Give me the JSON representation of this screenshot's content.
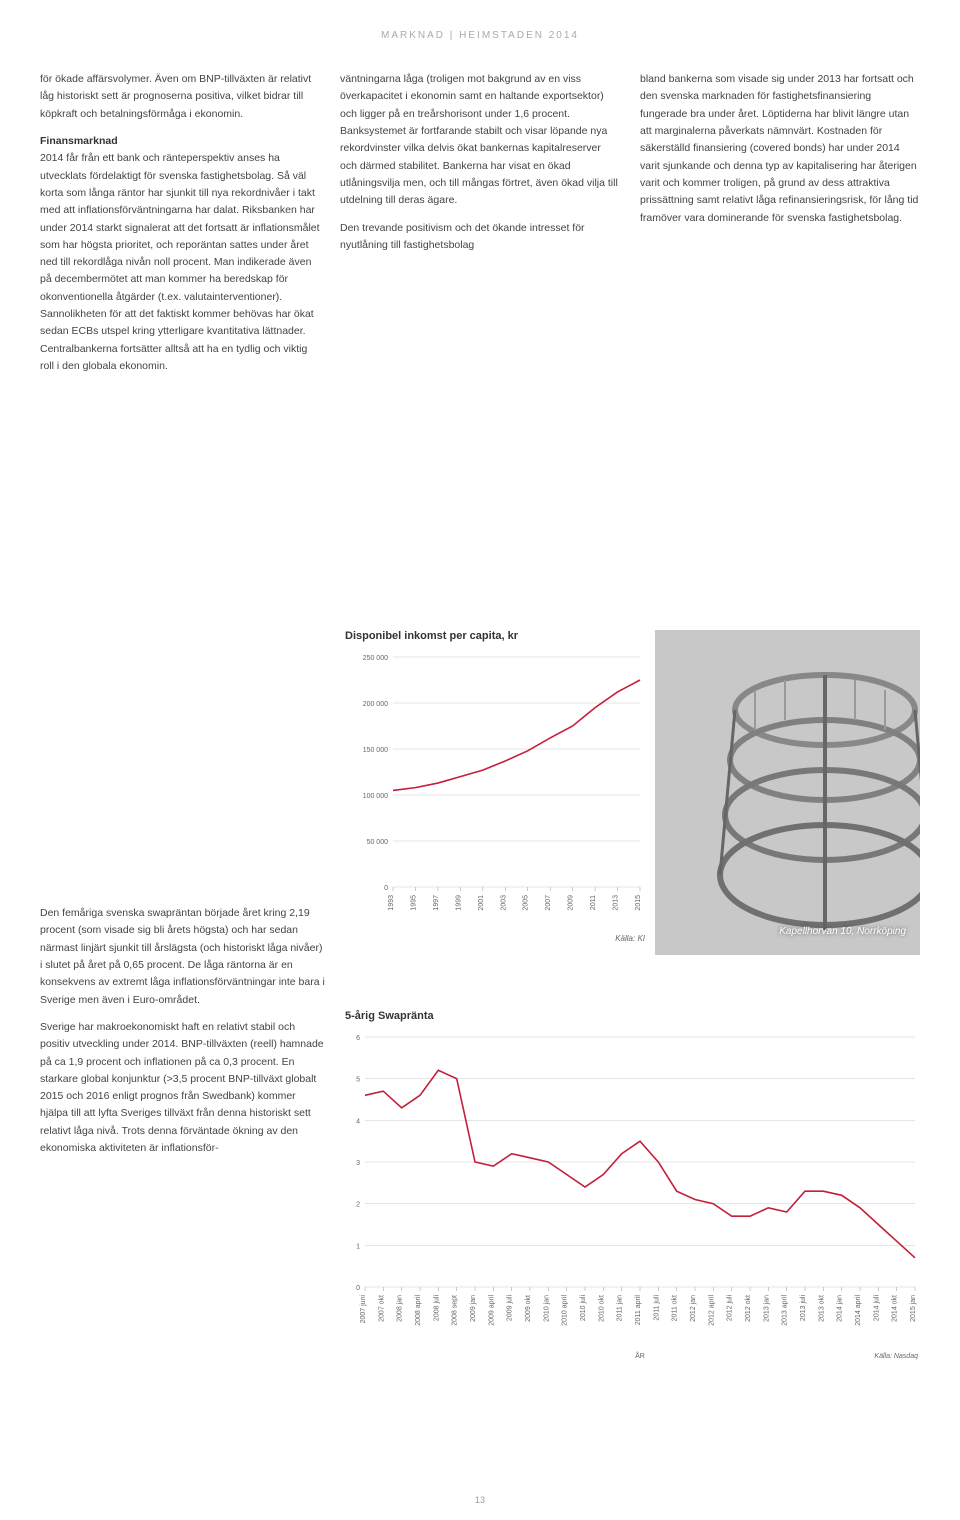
{
  "header": "MARKNAD | HEIMSTADEN 2014",
  "col1": {
    "p1": "för ökade affärsvolymer. Även om BNP-tillväxten är relativt låg historiskt sett är prognoserna positiva, vilket bidrar till köpkraft och betalningsförmåga i ekonomin.",
    "h1": "Finansmarknad",
    "p2": "2014 får från ett bank och ränteperspektiv anses ha utvecklats fördelaktigt för svenska fastighetsbolag. Så väl korta som långa räntor har sjunkit till nya rekordnivåer i takt med att inflationsförväntningarna har dalat. Riksbanken har under 2014 starkt signalerat att det fortsatt är inflationsmålet som har högsta prioritet, och reporäntan sattes under året ned till rekordlåga nivån noll procent. Man indikerade även på decembermötet att man kommer ha beredskap för okonventionella åtgärder (t.ex. valutainterventioner). Sannolikheten för att det faktiskt kommer behövas har ökat sedan ECBs utspel kring ytterligare kvantitativa lättnader. Centralbankerna fortsätter alltså att ha en tydlig och viktig roll i den globala ekonomin."
  },
  "col1_lower": {
    "p3": "Den femåriga svenska swapräntan började året kring 2,19 procent (som visade sig bli årets högsta) och har sedan närmast linjärt sjunkit till årslägsta (och historiskt låga nivåer) i slutet på året på 0,65 procent. De låga räntorna är en konsekvens av extremt låga inflationsförväntningar inte bara i Sverige men även i Euro-området.",
    "p4": "Sverige har makroekonomiskt haft en relativt stabil och positiv utveckling under 2014. BNP-tillväxten (reell) hamnade på ca 1,9 procent och inflationen på ca 0,3 procent. En starkare global konjunktur (>3,5 procent BNP-tillväxt globalt 2015 och 2016 enligt prognos från Swedbank) kommer hjälpa till att lyfta Sveriges tillväxt från denna historiskt sett relativt låga nivå. Trots denna förväntade ökning av den ekonomiska aktiviteten är inflationsför-"
  },
  "col2": {
    "p1": "väntningarna låga (troligen mot bakgrund av en viss överkapacitet i ekonomin samt en haltande exportsektor) och ligger på en treårshorisont under 1,6 procent. Banksystemet är fortfarande stabilt och visar löpande nya rekordvinster vilka delvis ökat bankernas kapitalreserver och därmed stabilitet. Bankerna har visat en ökad utlåningsvilja men, och till mångas förtret, även ökad vilja till utdelning till deras ägare.",
    "p2": "Den trevande positivism och det ökande intresset för nyutlåning till fastighetsbolag"
  },
  "col3": {
    "p1": "bland bankerna som visade sig under 2013 har fortsatt och den svenska marknaden för fastighetsfinansiering fungerade bra under året. Löptiderna har blivit längre utan att marginalerna påverkats nämnvärt. Kostnaden för säkerställd finansiering (covered bonds) har under 2014 varit sjunkande och denna typ av kapitalisering har återigen varit och kommer troligen, på grund av dess attraktiva prissättning samt relativt låga refinansieringsrisk, för lång tid framöver vara dominerande för svenska fastighetsbolag."
  },
  "chart1": {
    "title": "Disponibel inkomst per capita, kr",
    "ylabels": [
      "250 000",
      "200 000",
      "150 000",
      "100 000",
      "50 000",
      "0"
    ],
    "yvalues": [
      250000,
      200000,
      150000,
      100000,
      50000,
      0
    ],
    "xlabels": [
      "1993",
      "1995",
      "1997",
      "1999",
      "2001",
      "2003",
      "2005",
      "2007",
      "2009",
      "2011",
      "2013",
      "2015"
    ],
    "line_color": "#c41e3a",
    "data": [
      105000,
      108000,
      113000,
      120000,
      127000,
      137000,
      148000,
      162000,
      175000,
      195000,
      212000,
      225000
    ],
    "source": "Källa: KI"
  },
  "chart2": {
    "title": "5-årig Swapränta",
    "ylabels": [
      "6",
      "5",
      "4",
      "3",
      "2",
      "1",
      "0"
    ],
    "yvalues": [
      6,
      5,
      4,
      3,
      2,
      1,
      0
    ],
    "xlabels": [
      "2007 juni",
      "2007 okt",
      "2008 jan",
      "2008 april",
      "2008 juli",
      "2008 sept",
      "2009 jan",
      "2009 april",
      "2009 juli",
      "2009 okt",
      "2010 jan",
      "2010 april",
      "2010 juli",
      "2010 okt",
      "2011 jan",
      "2011 april",
      "2011 juli",
      "2011 okt",
      "2012 jan",
      "2012 april",
      "2012 juli",
      "2012 okt",
      "2013 jan",
      "2013 april",
      "2013 juli",
      "2013 okt",
      "2014 jan",
      "2014 april",
      "2014 juli",
      "2014 okt",
      "2015 jan"
    ],
    "line_color": "#c41e3a",
    "data": [
      4.6,
      4.7,
      4.3,
      4.6,
      5.2,
      5.0,
      3.0,
      2.9,
      3.2,
      3.1,
      3.0,
      2.7,
      2.4,
      2.7,
      3.2,
      3.5,
      3.0,
      2.3,
      2.1,
      2.0,
      1.7,
      1.7,
      1.9,
      1.8,
      2.3,
      2.3,
      2.2,
      1.9,
      1.5,
      1.1,
      0.7
    ],
    "xaxis_label": "ÅR",
    "source": "Källa: Nasdaq"
  },
  "image": {
    "caption": "Kapellhorvan 10, Norrköping"
  },
  "page_number": "13"
}
